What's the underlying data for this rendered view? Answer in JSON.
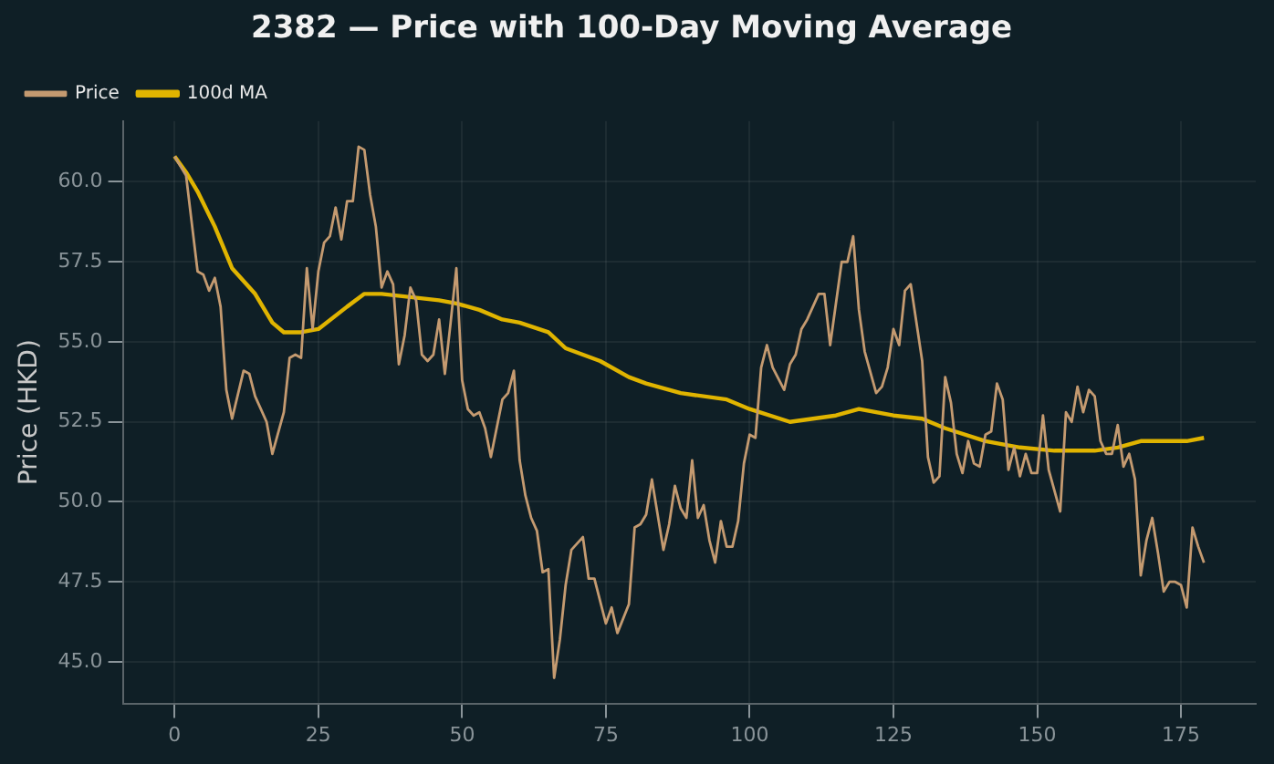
{
  "chart_data": {
    "type": "line",
    "title": "2382 — Price with 100-Day Moving Average",
    "ylabel": "Price (HKD)",
    "xlim": [
      -9,
      188
    ],
    "xticks": [
      0,
      25,
      50,
      75,
      100,
      125,
      150,
      175
    ],
    "ylim": [
      43.7,
      61.9
    ],
    "yticks": [
      {
        "value": 45,
        "label": "45.0"
      },
      {
        "value": 47.5,
        "label": "47.5"
      },
      {
        "value": 50,
        "label": "50.0"
      },
      {
        "value": 52.5,
        "label": "52.5"
      },
      {
        "value": 55,
        "label": "55.0"
      },
      {
        "value": 57.5,
        "label": "57.5"
      },
      {
        "value": 60,
        "label": "60.0"
      }
    ],
    "grid": true,
    "legend": "top left",
    "marker": "none",
    "line_style": "solid",
    "series": [
      {
        "name": "Price",
        "color": "#c49a70",
        "x": [
          0,
          2,
          4,
          5,
          6,
          7,
          8,
          9,
          10,
          12,
          13,
          14,
          15,
          16,
          17,
          19,
          20,
          21,
          22,
          23,
          24,
          25,
          26,
          27,
          28,
          29,
          30,
          31,
          32,
          33,
          34,
          35,
          36,
          37,
          38,
          39,
          40,
          41,
          42,
          43,
          44,
          45,
          46,
          47,
          48,
          49,
          50,
          51,
          52,
          53,
          54,
          55,
          57,
          58,
          59,
          60,
          61,
          62,
          63,
          64,
          65,
          66,
          67,
          68,
          69,
          71,
          72,
          73,
          75,
          76,
          77,
          79,
          80,
          81,
          82,
          83,
          85,
          86,
          87,
          88,
          89,
          90,
          91,
          92,
          93,
          94,
          95,
          96,
          97,
          98,
          99,
          100,
          101,
          102,
          103,
          104,
          106,
          107,
          108,
          109,
          110,
          112,
          113,
          114,
          116,
          117,
          118,
          119,
          120,
          122,
          123,
          124,
          125,
          126,
          127,
          128,
          130,
          131,
          132,
          133,
          134,
          135,
          136,
          137,
          138,
          139,
          140,
          141,
          142,
          143,
          144,
          145,
          146,
          147,
          148,
          149,
          150,
          151,
          152,
          154,
          155,
          156,
          157,
          158,
          159,
          160,
          161,
          162,
          163,
          164,
          165,
          166,
          167,
          168,
          169,
          170,
          171,
          172,
          173,
          174,
          175,
          176,
          177,
          178,
          179
        ],
        "values": [
          60.8,
          60.2,
          57.2,
          57.1,
          56.6,
          57.0,
          56.1,
          53.5,
          52.6,
          54.1,
          54.0,
          53.3,
          52.9,
          52.5,
          51.5,
          52.8,
          54.5,
          54.6,
          54.5,
          57.3,
          55.4,
          57.2,
          58.1,
          58.3,
          59.2,
          58.2,
          59.4,
          59.4,
          61.1,
          61.0,
          59.6,
          58.6,
          56.7,
          57.2,
          56.8,
          54.3,
          55.2,
          56.7,
          56.3,
          54.6,
          54.4,
          54.6,
          55.7,
          54.0,
          55.6,
          57.3,
          53.8,
          52.9,
          52.7,
          52.8,
          52.3,
          51.4,
          53.2,
          53.4,
          54.1,
          51.3,
          50.2,
          49.5,
          49.1,
          47.8,
          47.9,
          44.5,
          45.7,
          47.4,
          48.5,
          48.9,
          47.6,
          47.6,
          46.2,
          46.7,
          45.9,
          46.8,
          49.2,
          49.3,
          49.6,
          50.7,
          48.5,
          49.3,
          50.5,
          49.8,
          49.5,
          51.3,
          49.5,
          49.9,
          48.8,
          48.1,
          49.4,
          48.6,
          48.6,
          49.4,
          51.2,
          52.1,
          52.0,
          54.2,
          54.9,
          54.2,
          53.5,
          54.3,
          54.6,
          55.4,
          55.7,
          56.5,
          56.5,
          54.9,
          57.5,
          57.5,
          58.3,
          56.0,
          54.7,
          53.4,
          53.6,
          54.2,
          55.4,
          54.9,
          56.6,
          56.8,
          54.4,
          51.4,
          50.6,
          50.8,
          53.9,
          53.1,
          51.5,
          50.9,
          51.9,
          51.2,
          51.1,
          52.1,
          52.2,
          53.7,
          53.2,
          51.0,
          51.7,
          50.8,
          51.5,
          50.9,
          50.9,
          52.7,
          51.0,
          49.7,
          52.8,
          52.5,
          53.6,
          52.8,
          53.5,
          53.3,
          51.9,
          51.5,
          51.5,
          52.4,
          51.1,
          51.5,
          50.7,
          47.7,
          48.8,
          49.5,
          48.4,
          47.2,
          47.5,
          47.5,
          47.4,
          46.7,
          49.2,
          48.6,
          48.1
        ]
      },
      {
        "name": "100d MA",
        "color": "#e0b400",
        "x": [
          0,
          2,
          4,
          7,
          10,
          14,
          17,
          19,
          22,
          25,
          30,
          33,
          36,
          41,
          46,
          49,
          53,
          57,
          60,
          65,
          68,
          74,
          79,
          82,
          88,
          96,
          100,
          107,
          115,
          119,
          125,
          130,
          134,
          141,
          147,
          153,
          160,
          164,
          168,
          176,
          179
        ],
        "values": [
          60.8,
          60.3,
          59.7,
          58.6,
          57.3,
          56.5,
          55.6,
          55.3,
          55.3,
          55.4,
          56.1,
          56.5,
          56.5,
          56.4,
          56.3,
          56.2,
          56.0,
          55.7,
          55.6,
          55.3,
          54.8,
          54.4,
          53.9,
          53.7,
          53.4,
          53.2,
          52.9,
          52.5,
          52.7,
          52.9,
          52.7,
          52.6,
          52.3,
          51.9,
          51.7,
          51.6,
          51.6,
          51.7,
          51.9,
          51.9,
          52.0
        ]
      }
    ]
  }
}
